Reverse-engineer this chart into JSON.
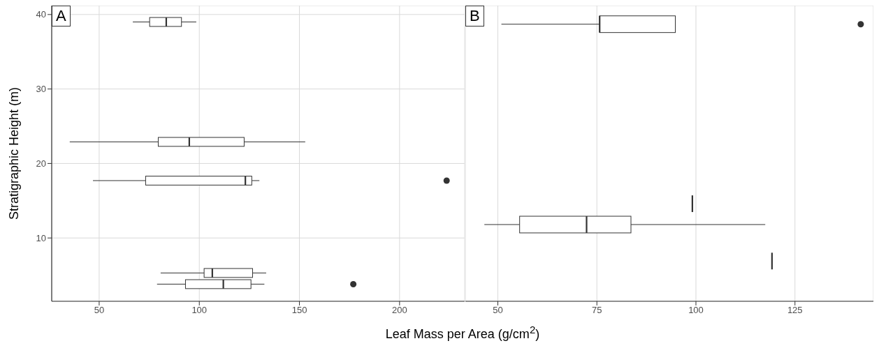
{
  "chart_data": [
    {
      "type": "box",
      "orientation": "horizontal",
      "color": "#333333",
      "annotations": [
        "A"
      ],
      "ylabel": "Stratigraphic Height (m)",
      "xlabel": "Leaf Mass per Area (g/cm$^{2}$)",
      "x": [
        39.0,
        22.9,
        17.7,
        5.3,
        3.8
      ],
      "boxes": [
        {
          "low": 66.8,
          "q1": 75.2,
          "median": 83.5,
          "q3": 91.1,
          "high": 98.5
        },
        {
          "low": 35.3,
          "q1": 79.5,
          "median": 95.0,
          "q3": 122.4,
          "high": 152.9
        },
        {
          "low": 46.9,
          "q1": 73.2,
          "median": 123.0,
          "q3": 126.2,
          "high": 130.0,
          "outliers": [
            223.5
          ]
        },
        {
          "low": 80.7,
          "q1": 102.4,
          "median": 106.5,
          "q3": 126.6,
          "high": 133.4
        },
        {
          "low": 78.9,
          "q1": 93.1,
          "median": 112.0,
          "q3": 125.8,
          "high": 132.5,
          "outliers": [
            176.9
          ]
        }
      ],
      "xlim": [
        26.3,
        232.5
      ],
      "xticks": [
        50,
        100,
        150,
        200
      ],
      "ylim": [
        1.5,
        41.2
      ],
      "yticks": [
        10,
        20,
        30,
        40
      ],
      "grid": true
    },
    {
      "type": "box",
      "orientation": "horizontal",
      "color": "#333333",
      "annotations": [
        "B"
      ],
      "x": [
        38.7,
        14.6,
        11.8,
        6.9
      ],
      "boxes": [
        {
          "low": 50.9,
          "q1": 75.7,
          "median": 75.7,
          "q3": 94.8,
          "high": 94.8,
          "outliers": [
            141.6
          ]
        },
        {
          "low": 99.1,
          "q1": 99.1,
          "median": 99.1,
          "q3": 99.1,
          "high": 99.1
        },
        {
          "low": 46.6,
          "q1": 55.5,
          "median": 72.4,
          "q3": 83.6,
          "high": 117.5
        },
        {
          "low": 119.2,
          "q1": 119.2,
          "median": 119.2,
          "q3": 119.2,
          "high": 119.2
        }
      ],
      "xlim": [
        41.8,
        144.8
      ],
      "xticks": [
        50,
        75,
        100,
        125
      ],
      "ylim": [
        1.5,
        41.2
      ],
      "yticks": [
        10,
        20,
        30,
        40
      ],
      "grid": true,
      "tick_labels": "x"
    }
  ]
}
